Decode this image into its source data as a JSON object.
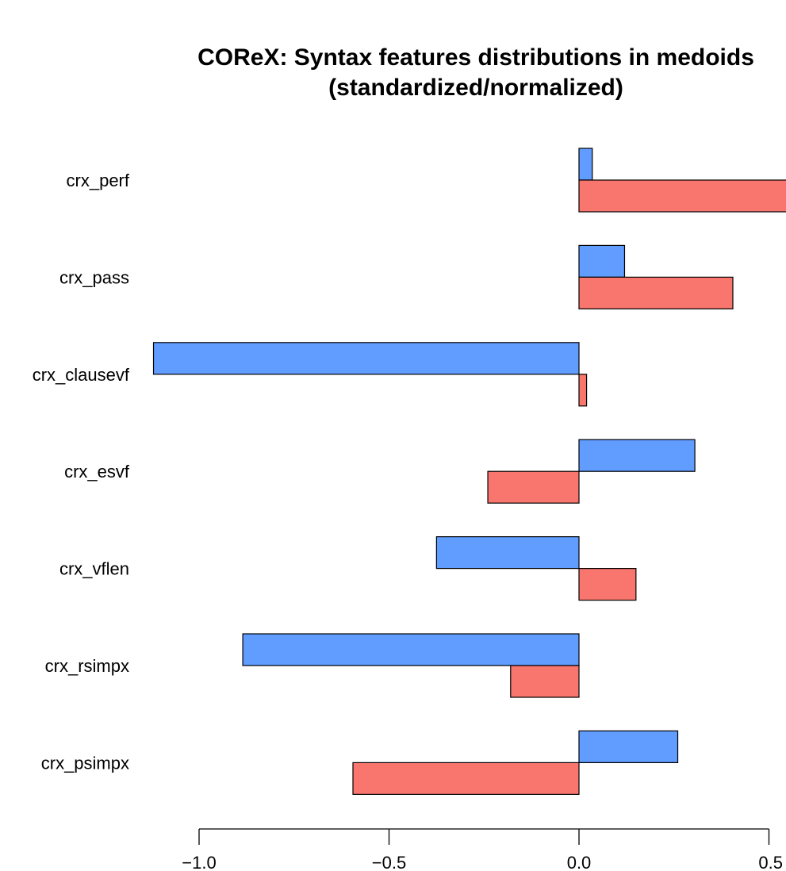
{
  "chart_data": {
    "type": "bar",
    "orientation": "horizontal",
    "title": "COReX: Syntax features distributions in medoids",
    "subtitle": "(standardized/normalized)",
    "categories": [
      "crx_perf",
      "crx_pass",
      "crx_clausevf",
      "crx_esvf",
      "crx_vflen",
      "crx_rsimpx",
      "crx_psimpx"
    ],
    "series": [
      {
        "color": "#619CFF",
        "values": [
          0.035,
          0.12,
          -1.12,
          0.305,
          -0.375,
          -0.885,
          0.26
        ]
      },
      {
        "color": "#F8766D",
        "values": [
          0.57,
          0.405,
          0.02,
          -0.24,
          0.15,
          -0.18,
          -0.595
        ]
      }
    ],
    "xlim": [
      -1.0,
      0.5
    ],
    "x_ticks": [
      -1.0,
      -0.5,
      0.0,
      0.5
    ],
    "x_tick_labels": [
      "−1.0",
      "−0.5",
      "0.0",
      "0.5"
    ],
    "grid": false,
    "legend": "none"
  }
}
